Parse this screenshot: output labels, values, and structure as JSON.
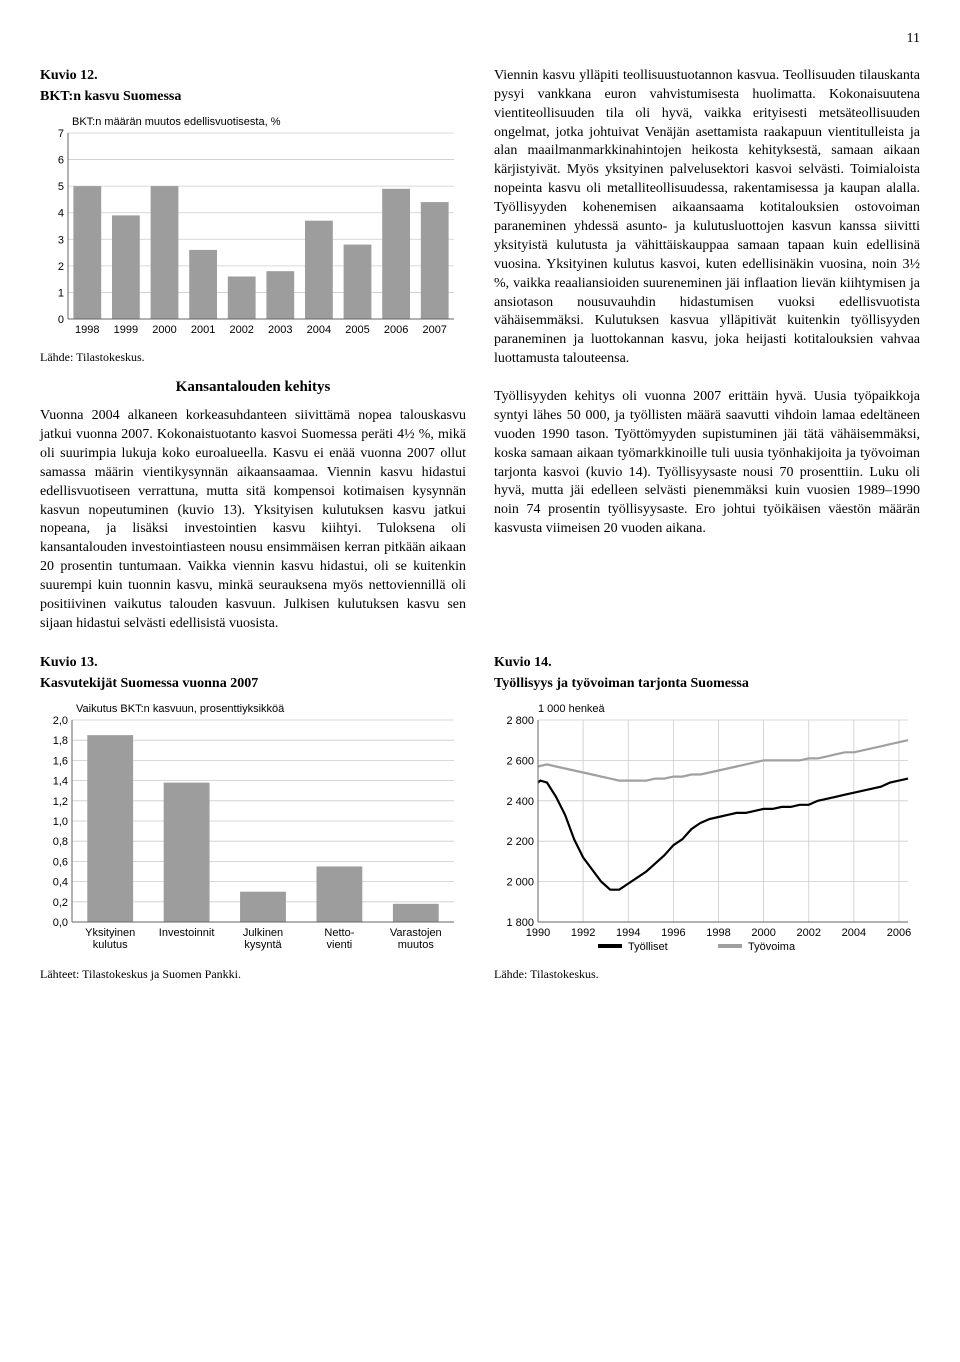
{
  "page_number": "11",
  "chart12": {
    "title_line1": "Kuvio 12.",
    "title_line2": "BKT:n kasvu Suomessa",
    "y_axis_label": "BKT:n määrän muutos edellisvuotisesta, %",
    "source": "Lähde: Tilastokeskus.",
    "type": "bar",
    "categories": [
      "1998",
      "1999",
      "2000",
      "2001",
      "2002",
      "2003",
      "2004",
      "2005",
      "2006",
      "2007"
    ],
    "values": [
      5.0,
      3.9,
      5.0,
      2.6,
      1.6,
      1.8,
      3.7,
      2.8,
      4.9,
      4.4
    ],
    "bar_color": "#9d9d9d",
    "grid_color": "#cccccc",
    "axis_color": "#666666",
    "text_color": "#000000",
    "background": "#ffffff",
    "ylim": [
      0,
      7
    ],
    "ytick_step": 1,
    "font_size_axis": 11
  },
  "section_heading": "Kansantalouden kehitys",
  "body_left": "Vuonna 2004 alkaneen korkeasuhdanteen siivittämä nopea talouskasvu jatkui vuonna 2007. Kokonaistuotanto kasvoi Suomessa peräti 4½ %, mikä oli suurimpia lukuja koko euroalueella. Kasvu ei enää vuonna 2007 ollut samassa määrin vientikysynnän aikaansaamaa. Viennin kasvu hidastui edellisvuotiseen verrattuna, mutta sitä kompensoi kotimaisen kysynnän kasvun nopeutuminen (kuvio 13). Yksityisen kulutuksen kasvu jatkui nopeana, ja lisäksi investointien kasvu kiihtyi. Tuloksena oli kansantalouden investointiasteen nousu ensimmäisen kerran pitkään aikaan 20 prosentin tuntumaan. Vaikka viennin kasvu hidastui, oli se kuitenkin suurempi kuin tuonnin kasvu, minkä seurauksena myös nettoviennillä oli positiivinen vaikutus talouden kasvuun. Julkisen kulutuksen kasvu sen sijaan hidastui selvästi edellisistä vuosista.",
  "body_right": "Viennin kasvu ylläpiti teollisuustuotannon kasvua. Teollisuuden tilauskanta pysyi vankkana euron vahvistumisesta huolimatta. Kokonaisuutena vientiteollisuuden tila oli hyvä, vaikka erityisesti metsäteollisuuden ongelmat, jotka johtuivat Venäjän asettamista raakapuun vientitulleista ja alan maailmanmarkkinahintojen heikosta kehityksestä, samaan aikaan kärjistyivät. Myös yksityinen palvelusektori kasvoi selvästi. Toimialoista nopeinta kasvu oli metalliteollisuudessa, rakentamisessa ja kaupan alalla. Työllisyyden kohenemisen aikaansaama kotitalouksien ostovoiman paraneminen yhdessä asunto- ja kulutusluottojen kasvun kanssa siivitti yksityistä kulutusta ja vähittäiskauppaa samaan tapaan kuin edellisinä vuosina. Yksityinen kulutus kasvoi, kuten edellisinäkin vuosina, noin 3½ %, vaikka reaaliansioiden suureneminen jäi inflaation lievän kiihtymisen ja ansiotason nousuvauhdin hidastumisen vuoksi edellisvuotista vähäisemmäksi. Kulutuksen kasvua ylläpitivät kuitenkin työllisyyden paraneminen ja luottokannan kasvu, joka heijasti kotitalouksien vahvaa luottamusta talouteensa.\n\nTyöllisyyden kehitys oli vuonna 2007 erittäin hyvä. Uusia työpaikkoja syntyi lähes 50 000, ja työllisten määrä saavutti vihdoin lamaa edeltäneen vuoden 1990 tason. Työttömyyden supistuminen jäi tätä vähäisemmäksi, koska samaan aikaan työmarkkinoille tuli uusia työnhakijoita ja työvoiman tarjonta kasvoi (kuvio 14). Työllisyysaste nousi 70 prosenttiin. Luku oli hyvä, mutta jäi edelleen selvästi pienemmäksi kuin vuosien 1989–1990 noin 74 prosentin työllisyysaste. Ero johtui työikäisen väestön määrän kasvusta viimeisen 20 vuoden aikana.",
  "chart13": {
    "title_line1": "Kuvio 13.",
    "title_line2": "Kasvutekijät Suomessa vuonna 2007",
    "y_axis_label": "Vaikutus BKT:n kasvuun, prosenttiyksikköä",
    "source": "Lähteet: Tilastokeskus ja Suomen Pankki.",
    "type": "bar",
    "categories": [
      "Yksityinen kulutus",
      "Investoinnit",
      "Julkinen kysyntä",
      "Netto-\nvienti",
      "Varastojen muutos"
    ],
    "values": [
      1.85,
      1.38,
      0.3,
      0.55,
      0.18
    ],
    "bar_color": "#9d9d9d",
    "grid_color": "#cccccc",
    "axis_color": "#666666",
    "text_color": "#000000",
    "background": "#ffffff",
    "ylim": [
      0.0,
      2.0
    ],
    "ytick_step": 0.2,
    "font_size_axis": 11
  },
  "chart14": {
    "title_line1": "Kuvio 14.",
    "title_line2": "Työllisyys ja työvoiman tarjonta Suomessa",
    "y_axis_label": "1 000 henkeä",
    "source": "Lähde: Tilastokeskus.",
    "type": "line",
    "x_ticks": [
      "1990",
      "1992",
      "1994",
      "1996",
      "1998",
      "2000",
      "2002",
      "2004",
      "2006"
    ],
    "ylim": [
      1800,
      2800
    ],
    "ytick_step": 200,
    "series": [
      {
        "name": "Työlliset",
        "color": "#000000",
        "width": 2.2,
        "points": [
          [
            0.0,
            2490
          ],
          [
            0.1,
            2500
          ],
          [
            0.4,
            2490
          ],
          [
            0.8,
            2420
          ],
          [
            1.2,
            2330
          ],
          [
            1.6,
            2210
          ],
          [
            2.0,
            2120
          ],
          [
            2.4,
            2060
          ],
          [
            2.8,
            2000
          ],
          [
            3.2,
            1960
          ],
          [
            3.6,
            1960
          ],
          [
            4.0,
            1990
          ],
          [
            4.4,
            2020
          ],
          [
            4.8,
            2050
          ],
          [
            5.2,
            2090
          ],
          [
            5.6,
            2130
          ],
          [
            6.0,
            2180
          ],
          [
            6.4,
            2210
          ],
          [
            6.8,
            2260
          ],
          [
            7.2,
            2290
          ],
          [
            7.6,
            2310
          ],
          [
            8.0,
            2320
          ],
          [
            8.4,
            2330
          ],
          [
            8.8,
            2340
          ],
          [
            9.2,
            2340
          ],
          [
            9.6,
            2350
          ],
          [
            10.0,
            2360
          ],
          [
            10.4,
            2360
          ],
          [
            10.8,
            2370
          ],
          [
            11.2,
            2370
          ],
          [
            11.6,
            2380
          ],
          [
            12.0,
            2380
          ],
          [
            12.4,
            2400
          ],
          [
            12.8,
            2410
          ],
          [
            13.2,
            2420
          ],
          [
            13.6,
            2430
          ],
          [
            14.0,
            2440
          ],
          [
            14.4,
            2450
          ],
          [
            14.8,
            2460
          ],
          [
            15.2,
            2470
          ],
          [
            15.6,
            2490
          ],
          [
            16.0,
            2500
          ],
          [
            16.4,
            2510
          ]
        ]
      },
      {
        "name": "Työvoima",
        "color": "#a0a0a0",
        "width": 2.2,
        "points": [
          [
            0.0,
            2570
          ],
          [
            0.4,
            2580
          ],
          [
            0.8,
            2570
          ],
          [
            1.2,
            2560
          ],
          [
            1.6,
            2550
          ],
          [
            2.0,
            2540
          ],
          [
            2.4,
            2530
          ],
          [
            2.8,
            2520
          ],
          [
            3.2,
            2510
          ],
          [
            3.6,
            2500
          ],
          [
            4.0,
            2500
          ],
          [
            4.4,
            2500
          ],
          [
            4.8,
            2500
          ],
          [
            5.2,
            2510
          ],
          [
            5.6,
            2510
          ],
          [
            6.0,
            2520
          ],
          [
            6.4,
            2520
          ],
          [
            6.8,
            2530
          ],
          [
            7.2,
            2530
          ],
          [
            7.6,
            2540
          ],
          [
            8.0,
            2550
          ],
          [
            8.4,
            2560
          ],
          [
            8.8,
            2570
          ],
          [
            9.2,
            2580
          ],
          [
            9.6,
            2590
          ],
          [
            10.0,
            2600
          ],
          [
            10.4,
            2600
          ],
          [
            10.8,
            2600
          ],
          [
            11.2,
            2600
          ],
          [
            11.6,
            2600
          ],
          [
            12.0,
            2610
          ],
          [
            12.4,
            2610
          ],
          [
            12.8,
            2620
          ],
          [
            13.2,
            2630
          ],
          [
            13.6,
            2640
          ],
          [
            14.0,
            2640
          ],
          [
            14.4,
            2650
          ],
          [
            14.8,
            2660
          ],
          [
            15.2,
            2670
          ],
          [
            15.6,
            2680
          ],
          [
            16.0,
            2690
          ],
          [
            16.4,
            2700
          ]
        ]
      }
    ],
    "legend_swatch_color_1": "#000000",
    "legend_swatch_color_2": "#a0a0a0",
    "grid_color": "#cccccc",
    "axis_color": "#666666",
    "background": "#ffffff",
    "font_size_axis": 11
  }
}
